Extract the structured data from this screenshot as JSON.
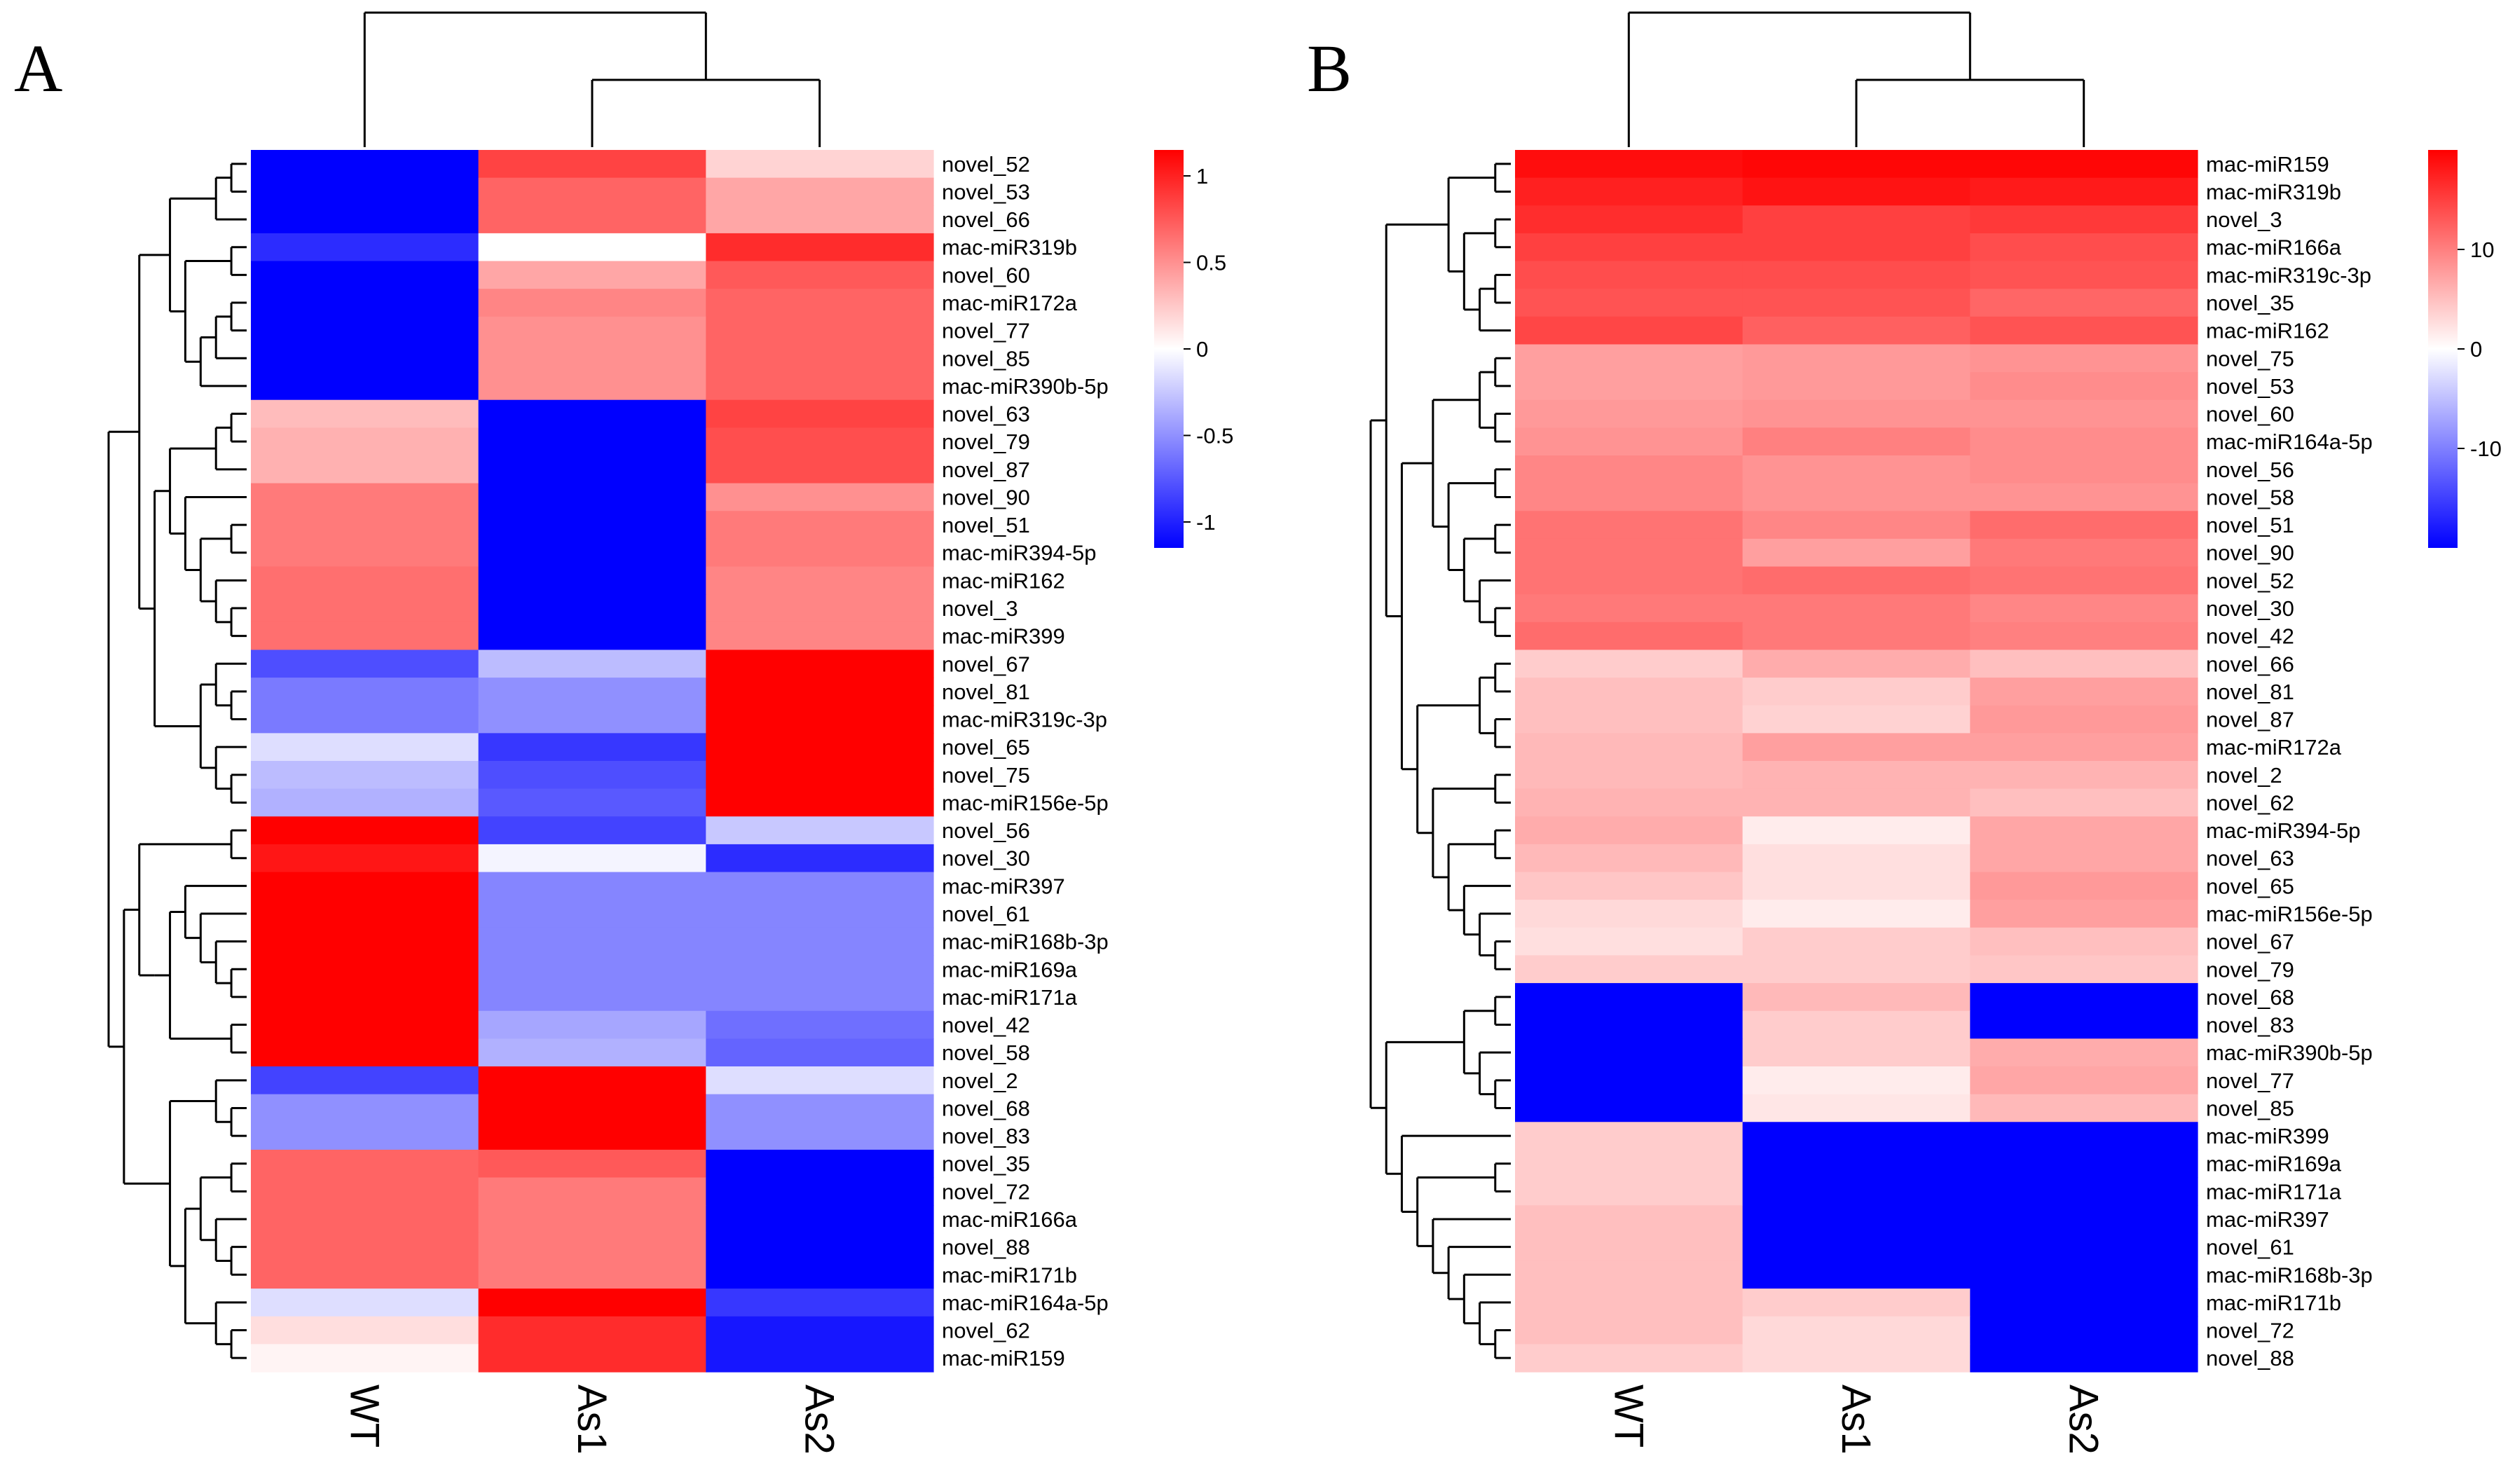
{
  "figure": {
    "panel_a_label": "A",
    "panel_b_label": "B"
  },
  "colors": {
    "low": "#0000ff",
    "mid": "#ffffff",
    "high": "#ff0000",
    "tree": "#000000"
  },
  "chart_data": [
    {
      "type": "heatmap",
      "panel": "A",
      "title": "",
      "columns": [
        "WT",
        "As1",
        "As2"
      ],
      "rows": [
        "novel_52",
        "novel_53",
        "novel_66",
        "mac-miR319b",
        "novel_60",
        "mac-miR172a",
        "novel_77",
        "novel_85",
        "mac-miR390b-5p",
        "novel_63",
        "novel_79",
        "novel_87",
        "novel_90",
        "novel_51",
        "mac-miR394-5p",
        "mac-miR162",
        "novel_3",
        "mac-miR399",
        "novel_67",
        "novel_81",
        "mac-miR319c-3p",
        "novel_65",
        "novel_75",
        "mac-miR156e-5p",
        "novel_56",
        "novel_30",
        "mac-miR397",
        "novel_61",
        "mac-miR168b-3p",
        "mac-miR169a",
        "mac-miR171a",
        "novel_42",
        "novel_58",
        "novel_2",
        "novel_68",
        "novel_83",
        "novel_35",
        "novel_72",
        "mac-miR166a",
        "novel_88",
        "mac-miR171b",
        "mac-miR164a-5p",
        "novel_62",
        "mac-miR159"
      ],
      "values": [
        [
          -1.15,
          0.85,
          0.2
        ],
        [
          -1.15,
          0.7,
          0.4
        ],
        [
          -1.15,
          0.7,
          0.4
        ],
        [
          -0.95,
          0.0,
          0.95
        ],
        [
          -1.15,
          0.4,
          0.75
        ],
        [
          -1.15,
          0.55,
          0.7
        ],
        [
          -1.15,
          0.5,
          0.7
        ],
        [
          -1.15,
          0.5,
          0.7
        ],
        [
          -1.15,
          0.5,
          0.7
        ],
        [
          0.3,
          -1.15,
          0.85
        ],
        [
          0.35,
          -1.15,
          0.8
        ],
        [
          0.35,
          -1.15,
          0.8
        ],
        [
          0.6,
          -1.15,
          0.5
        ],
        [
          0.6,
          -1.15,
          0.6
        ],
        [
          0.6,
          -1.15,
          0.6
        ],
        [
          0.65,
          -1.15,
          0.55
        ],
        [
          0.65,
          -1.15,
          0.55
        ],
        [
          0.65,
          -1.15,
          0.55
        ],
        [
          -0.8,
          -0.3,
          1.15
        ],
        [
          -0.6,
          -0.5,
          1.15
        ],
        [
          -0.6,
          -0.5,
          1.15
        ],
        [
          -0.15,
          -0.9,
          1.15
        ],
        [
          -0.3,
          -0.8,
          1.15
        ],
        [
          -0.35,
          -0.75,
          1.15
        ],
        [
          1.15,
          -0.85,
          -0.25
        ],
        [
          1.05,
          -0.05,
          -0.95
        ],
        [
          1.15,
          -0.55,
          -0.55
        ],
        [
          1.15,
          -0.55,
          -0.55
        ],
        [
          1.15,
          -0.55,
          -0.55
        ],
        [
          1.15,
          -0.55,
          -0.55
        ],
        [
          1.15,
          -0.55,
          -0.55
        ],
        [
          1.15,
          -0.4,
          -0.65
        ],
        [
          1.15,
          -0.35,
          -0.7
        ],
        [
          -0.85,
          1.15,
          -0.15
        ],
        [
          -0.5,
          1.15,
          -0.5
        ],
        [
          -0.5,
          1.15,
          -0.5
        ],
        [
          0.7,
          0.75,
          -1.15
        ],
        [
          0.7,
          0.6,
          -1.15
        ],
        [
          0.7,
          0.6,
          -1.15
        ],
        [
          0.7,
          0.6,
          -1.15
        ],
        [
          0.7,
          0.6,
          -1.15
        ],
        [
          -0.15,
          1.15,
          -0.9
        ],
        [
          0.15,
          0.95,
          -1.05
        ],
        [
          0.05,
          0.95,
          -1.05
        ]
      ],
      "color_scale": {
        "min": -1.15,
        "max": 1.15,
        "ticks": [
          1,
          0.5,
          0,
          -0.5,
          -1
        ],
        "tick_labels": [
          "1",
          "0.5",
          "0",
          "-0.5",
          "-1"
        ]
      },
      "column_dendrogram": "(WT,(As1,As2))",
      "row_dendrogram": "(((((novel_52,novel_53),novel_66),((mac-miR319b,novel_60),(((mac-miR172a,novel_77),novel_85),mac-miR390b-5p))),((((novel_63,novel_79),novel_87),(novel_90,((novel_51,mac-miR394-5p),(mac-miR162,(novel_3,mac-miR399))))),((novel_67,(novel_81,mac-miR319c-3p)),(novel_65,(novel_75,mac-miR156e-5p))))),(((novel_56,novel_30),(((mac-miR397,(novel_61,(mac-miR168b-3p,(mac-miR169a,mac-miR171a)))),(novel_42,novel_58)))),((novel_2,(novel_68,novel_83)),(((novel_35,novel_72),(mac-miR166a,(novel_88,mac-miR171b))),(mac-miR164a-5p,(novel_62,mac-miR159))))))"
    },
    {
      "type": "heatmap",
      "panel": "B",
      "title": "",
      "columns": [
        "WT",
        "As1",
        "As2"
      ],
      "rows": [
        "mac-miR159",
        "mac-miR319b",
        "novel_3",
        "mac-miR166a",
        "mac-miR319c-3p",
        "novel_35",
        "mac-miR162",
        "novel_75",
        "novel_53",
        "novel_60",
        "mac-miR164a-5p",
        "novel_56",
        "novel_58",
        "novel_51",
        "novel_90",
        "novel_52",
        "novel_30",
        "novel_42",
        "novel_66",
        "novel_81",
        "novel_87",
        "mac-miR172a",
        "novel_2",
        "novel_62",
        "mac-miR394-5p",
        "novel_63",
        "novel_65",
        "mac-miR156e-5p",
        "novel_67",
        "novel_79",
        "novel_68",
        "novel_83",
        "mac-miR390b-5p",
        "novel_77",
        "novel_85",
        "mac-miR399",
        "mac-miR169a",
        "mac-miR171a",
        "mac-miR397",
        "novel_61",
        "mac-miR168b-3p",
        "mac-miR171b",
        "novel_72",
        "novel_88"
      ],
      "values": [
        [
          19,
          19.5,
          19.5
        ],
        [
          17.5,
          18.5,
          18
        ],
        [
          16.5,
          15,
          15.5
        ],
        [
          15,
          15,
          14
        ],
        [
          14,
          14,
          13.5
        ],
        [
          13.5,
          13.5,
          12
        ],
        [
          14.5,
          12.5,
          13.5
        ],
        [
          7.5,
          8,
          8.5
        ],
        [
          7.5,
          8,
          9
        ],
        [
          8,
          8.5,
          8.5
        ],
        [
          8.5,
          10,
          9
        ],
        [
          9.5,
          8.5,
          9
        ],
        [
          9.5,
          8.5,
          8.5
        ],
        [
          11,
          9.5,
          11.5
        ],
        [
          11,
          7.5,
          10.5
        ],
        [
          11,
          11.5,
          11
        ],
        [
          10.5,
          10.5,
          9.5
        ],
        [
          11.5,
          10.5,
          10
        ],
        [
          4,
          6.5,
          5
        ],
        [
          5,
          4,
          7.5
        ],
        [
          5,
          3.5,
          8
        ],
        [
          5.5,
          7.5,
          7.5
        ],
        [
          5.5,
          6,
          6
        ],
        [
          6,
          6,
          5
        ],
        [
          6.5,
          1.5,
          7
        ],
        [
          5.5,
          2.5,
          7
        ],
        [
          4.5,
          2.5,
          8
        ],
        [
          3,
          1.5,
          7.5
        ],
        [
          2.5,
          4,
          5
        ],
        [
          4,
          4,
          4.5
        ],
        [
          -20,
          5.5,
          -20
        ],
        [
          -20,
          4,
          -20
        ],
        [
          -20,
          4,
          6.5
        ],
        [
          -20,
          1.5,
          7
        ],
        [
          -20,
          2,
          5.5
        ],
        [
          4,
          -20,
          -20
        ],
        [
          4,
          -20,
          -20
        ],
        [
          4,
          -20,
          -20
        ],
        [
          5,
          -20,
          -20
        ],
        [
          5,
          -20,
          -20
        ],
        [
          5,
          -20,
          -20
        ],
        [
          5,
          4,
          -20
        ],
        [
          5,
          3,
          -20
        ],
        [
          4,
          3,
          -20
        ]
      ],
      "color_scale": {
        "min": -20,
        "max": 20,
        "ticks": [
          10,
          0,
          -10
        ],
        "tick_labels": [
          "10",
          "0",
          "-10"
        ]
      },
      "column_dendrogram": "(WT,(As1,As2))",
      "row_dendrogram": "((((mac-miR159,mac-miR319b),((novel_3,mac-miR166a),((mac-miR319c-3p,novel_35),mac-miR162))),((((novel_75,novel_53),(novel_60,mac-miR164a-5p)),((novel_56,novel_58),((novel_51,novel_90),(novel_52,(novel_30,novel_42))))),(((novel_66,novel_81),(novel_87,mac-miR172a)),((novel_2,novel_62),((mac-miR394-5p,novel_63),(novel_65,(mac-miR156e-5p,(novel_67,novel_79)))))))),(((novel_68,novel_83),(mac-miR390b-5p,(novel_77,novel_85))),(mac-miR399,((mac-miR169a,mac-miR171a),(mac-miR397,(novel_61,(mac-miR168b-3p,(mac-miR171b,(novel_72,novel_88)))))))))"
    }
  ]
}
